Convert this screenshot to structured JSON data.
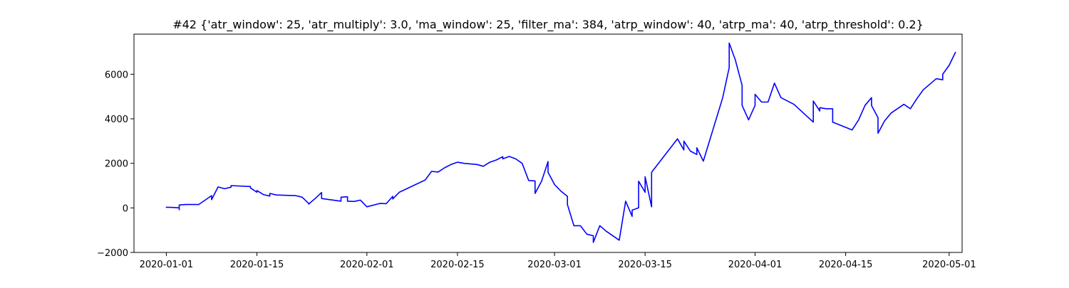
{
  "chart_data": {
    "type": "line",
    "title": "#42 {'atr_window': 25, 'atr_multiply': 3.0, 'ma_window': 25, 'filter_ma': 384, 'atrp_window': 40, 'atrp_ma': 40, 'atrp_threshold': 0.2}",
    "xlabel": "",
    "ylabel": "",
    "grid": false,
    "color": "#0000ff",
    "xlim": [
      "2019-12-27",
      "2020-05-03"
    ],
    "ylim": [
      -2000,
      7800
    ],
    "xticks": [
      "2020-01-01",
      "2020-01-15",
      "2020-02-01",
      "2020-02-15",
      "2020-03-01",
      "2020-03-15",
      "2020-04-01",
      "2020-04-15",
      "2020-05-01"
    ],
    "yticks": [
      -2000,
      0,
      2000,
      4000,
      6000
    ],
    "series": [
      {
        "points": [
          [
            "2020-01-01",
            0
          ],
          [
            "2020-01-01",
            30
          ],
          [
            "2020-01-02",
            20
          ],
          [
            "2020-01-03",
            0
          ],
          [
            "2020-01-03",
            -80
          ],
          [
            "2020-01-03",
            130
          ],
          [
            "2020-01-04",
            150
          ],
          [
            "2020-01-06",
            150
          ],
          [
            "2020-01-08",
            550
          ],
          [
            "2020-01-08",
            370
          ],
          [
            "2020-01-09",
            940
          ],
          [
            "2020-01-10",
            860
          ],
          [
            "2020-01-11",
            930
          ],
          [
            "2020-01-11",
            1000
          ],
          [
            "2020-01-14",
            960
          ],
          [
            "2020-01-14",
            900
          ],
          [
            "2020-01-15",
            700
          ],
          [
            "2020-01-15",
            780
          ],
          [
            "2020-01-16",
            600
          ],
          [
            "2020-01-17",
            530
          ],
          [
            "2020-01-17",
            650
          ],
          [
            "2020-01-18",
            580
          ],
          [
            "2020-01-20",
            560
          ],
          [
            "2020-01-21",
            550
          ],
          [
            "2020-01-22",
            480
          ],
          [
            "2020-01-23",
            200
          ],
          [
            "2020-01-23",
            170
          ],
          [
            "2020-01-24",
            420
          ],
          [
            "2020-01-25",
            690
          ],
          [
            "2020-01-25",
            420
          ],
          [
            "2020-01-28",
            300
          ],
          [
            "2020-01-28",
            480
          ],
          [
            "2020-01-29",
            500
          ],
          [
            "2020-01-29",
            300
          ],
          [
            "2020-01-30",
            290
          ],
          [
            "2020-01-31",
            350
          ],
          [
            "2020-02-01",
            50
          ],
          [
            "2020-02-03",
            200
          ],
          [
            "2020-02-04",
            190
          ],
          [
            "2020-02-05",
            520
          ],
          [
            "2020-02-05",
            400
          ],
          [
            "2020-02-06",
            700
          ],
          [
            "2020-02-10",
            1250
          ],
          [
            "2020-02-11",
            1640
          ],
          [
            "2020-02-12",
            1610
          ],
          [
            "2020-02-13",
            1800
          ],
          [
            "2020-02-14",
            1950
          ],
          [
            "2020-02-15",
            2050
          ],
          [
            "2020-02-16",
            2000
          ],
          [
            "2020-02-18",
            1950
          ],
          [
            "2020-02-19",
            1870
          ],
          [
            "2020-02-20",
            2050
          ],
          [
            "2020-02-21",
            2150
          ],
          [
            "2020-02-22",
            2300
          ],
          [
            "2020-02-22",
            2200
          ],
          [
            "2020-02-23",
            2310
          ],
          [
            "2020-02-24",
            2200
          ],
          [
            "2020-02-25",
            2000
          ],
          [
            "2020-02-26",
            1230
          ],
          [
            "2020-02-27",
            1210
          ],
          [
            "2020-02-27",
            650
          ],
          [
            "2020-02-28",
            1200
          ],
          [
            "2020-02-29",
            2080
          ],
          [
            "2020-02-29",
            1600
          ],
          [
            "2020-03-01",
            1050
          ],
          [
            "2020-03-02",
            750
          ],
          [
            "2020-03-03",
            520
          ],
          [
            "2020-03-03",
            150
          ],
          [
            "2020-03-04",
            -800
          ],
          [
            "2020-03-05",
            -800
          ],
          [
            "2020-03-06",
            -1180
          ],
          [
            "2020-03-07",
            -1250
          ],
          [
            "2020-03-07",
            -1550
          ],
          [
            "2020-03-08",
            -800
          ],
          [
            "2020-03-09",
            -1050
          ],
          [
            "2020-03-11",
            -1450
          ],
          [
            "2020-03-12",
            300
          ],
          [
            "2020-03-13",
            -380
          ],
          [
            "2020-03-13",
            -100
          ],
          [
            "2020-03-14",
            0
          ],
          [
            "2020-03-14",
            1200
          ],
          [
            "2020-03-15",
            700
          ],
          [
            "2020-03-15",
            1400
          ],
          [
            "2020-03-16",
            50
          ],
          [
            "2020-03-16",
            1600
          ],
          [
            "2020-03-20",
            3100
          ],
          [
            "2020-03-21",
            2600
          ],
          [
            "2020-03-21",
            3000
          ],
          [
            "2020-03-22",
            2550
          ],
          [
            "2020-03-23",
            2400
          ],
          [
            "2020-03-23",
            2700
          ],
          [
            "2020-03-24",
            2100
          ],
          [
            "2020-03-27",
            4950
          ],
          [
            "2020-03-28",
            6300
          ],
          [
            "2020-03-28",
            6550
          ],
          [
            "2020-03-28",
            7400
          ],
          [
            "2020-03-29",
            6600
          ],
          [
            "2020-03-29",
            6580
          ],
          [
            "2020-03-30",
            5500
          ],
          [
            "2020-03-30",
            4600
          ],
          [
            "2020-03-31",
            3950
          ],
          [
            "2020-04-01",
            4600
          ],
          [
            "2020-04-01",
            5100
          ],
          [
            "2020-04-02",
            4750
          ],
          [
            "2020-04-03",
            4750
          ],
          [
            "2020-04-04",
            5600
          ],
          [
            "2020-04-05",
            4950
          ],
          [
            "2020-04-07",
            4650
          ],
          [
            "2020-04-10",
            3850
          ],
          [
            "2020-04-10",
            4800
          ],
          [
            "2020-04-11",
            4350
          ],
          [
            "2020-04-11",
            4500
          ],
          [
            "2020-04-12",
            4450
          ],
          [
            "2020-04-13",
            4450
          ],
          [
            "2020-04-13",
            3850
          ],
          [
            "2020-04-16",
            3500
          ],
          [
            "2020-04-17",
            3950
          ],
          [
            "2020-04-18",
            4600
          ],
          [
            "2020-04-19",
            4950
          ],
          [
            "2020-04-19",
            4600
          ],
          [
            "2020-04-20",
            4050
          ],
          [
            "2020-04-20",
            3350
          ],
          [
            "2020-04-21",
            3900
          ],
          [
            "2020-04-22",
            4250
          ],
          [
            "2020-04-24",
            4650
          ],
          [
            "2020-04-25",
            4450
          ],
          [
            "2020-04-26",
            4900
          ],
          [
            "2020-04-27",
            5300
          ],
          [
            "2020-04-29",
            5800
          ],
          [
            "2020-04-30",
            5750
          ],
          [
            "2020-04-30",
            6000
          ],
          [
            "2020-05-01",
            6400
          ],
          [
            "2020-05-02",
            7000
          ]
        ]
      }
    ]
  }
}
